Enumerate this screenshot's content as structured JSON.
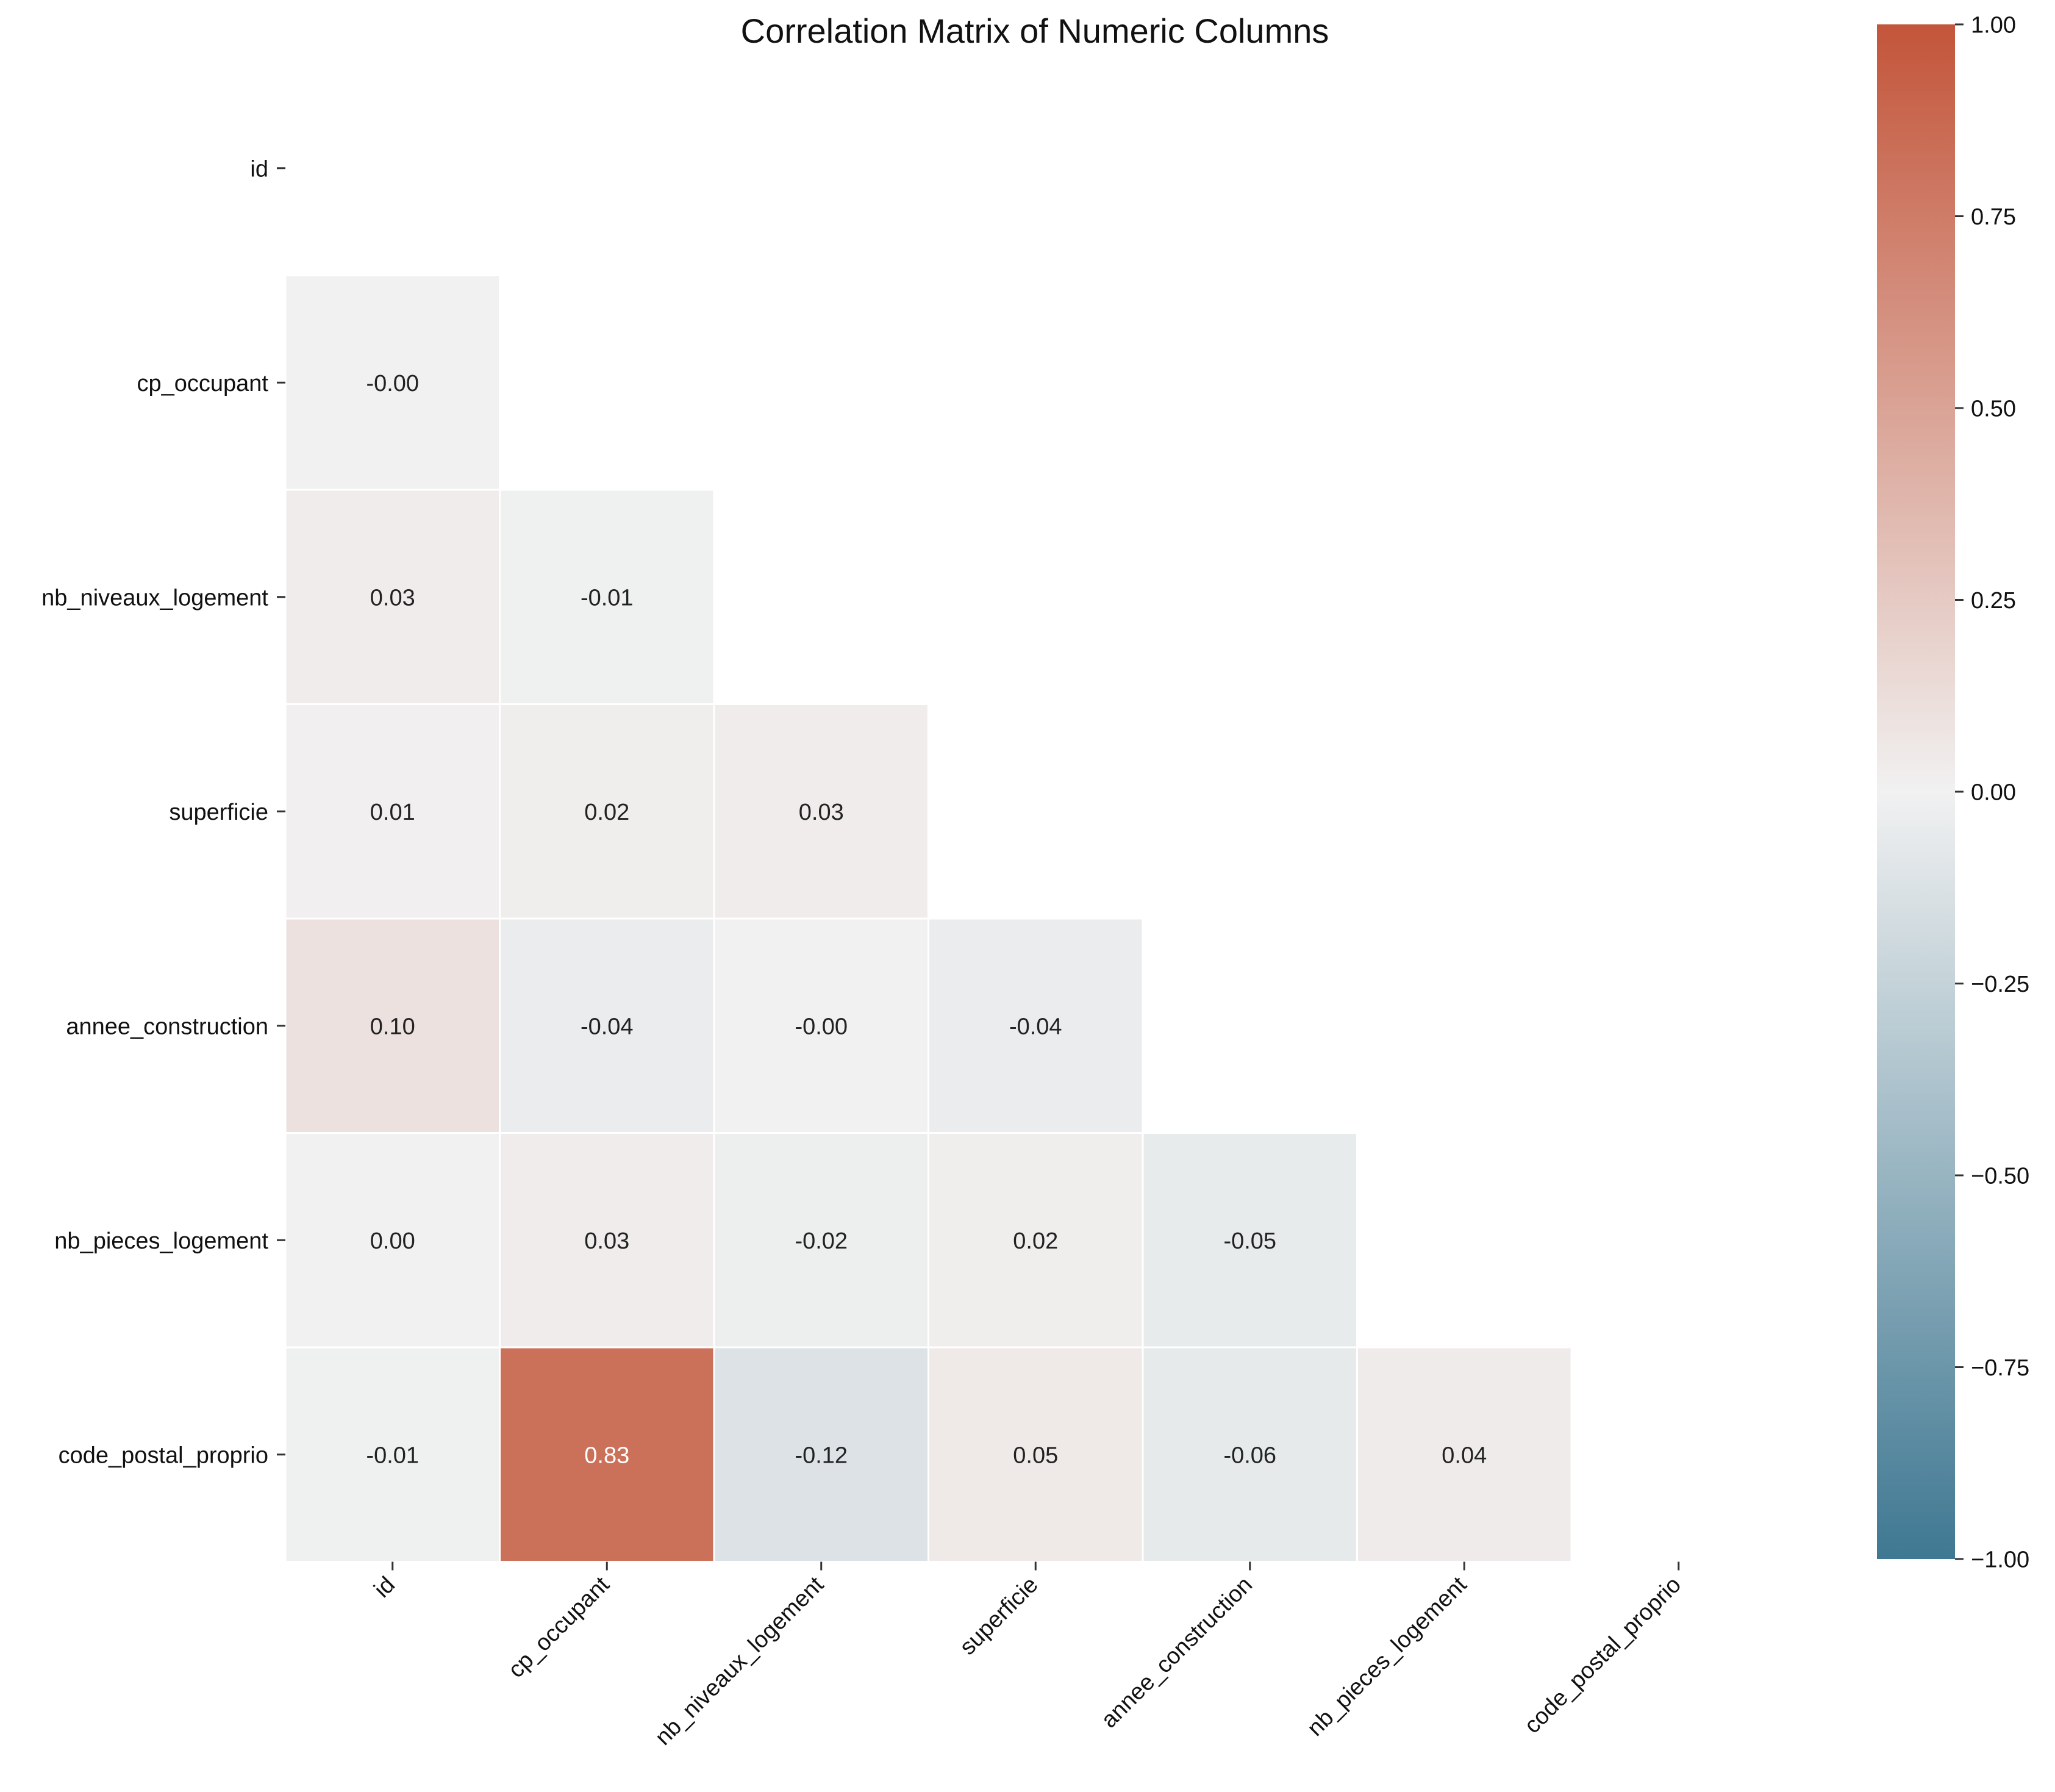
{
  "chart_data": {
    "type": "heatmap",
    "title": "Correlation Matrix of Numeric Columns",
    "xlabel": "",
    "ylabel": "",
    "variables": [
      "id",
      "cp_occupant",
      "nb_niveaux_logement",
      "superficie",
      "annee_construction",
      "nb_pieces_logement",
      "code_postal_proprio"
    ],
    "mask": "upper-triangle-including-diagonal",
    "cells": [
      {
        "row": 1,
        "col": 0,
        "value": -0.001,
        "label": "-0.00"
      },
      {
        "row": 2,
        "col": 0,
        "value": 0.03,
        "label": "0.03"
      },
      {
        "row": 2,
        "col": 1,
        "value": -0.01,
        "label": "-0.01"
      },
      {
        "row": 3,
        "col": 0,
        "value": 0.01,
        "label": "0.01"
      },
      {
        "row": 3,
        "col": 1,
        "value": 0.02,
        "label": "0.02"
      },
      {
        "row": 3,
        "col": 2,
        "value": 0.03,
        "label": "0.03"
      },
      {
        "row": 4,
        "col": 0,
        "value": 0.1,
        "label": "0.10"
      },
      {
        "row": 4,
        "col": 1,
        "value": -0.04,
        "label": "-0.04"
      },
      {
        "row": 4,
        "col": 2,
        "value": -0.001,
        "label": "-0.00"
      },
      {
        "row": 4,
        "col": 3,
        "value": -0.04,
        "label": "-0.04"
      },
      {
        "row": 5,
        "col": 0,
        "value": 0.001,
        "label": "0.00"
      },
      {
        "row": 5,
        "col": 1,
        "value": 0.03,
        "label": "0.03"
      },
      {
        "row": 5,
        "col": 2,
        "value": -0.02,
        "label": "-0.02"
      },
      {
        "row": 5,
        "col": 3,
        "value": 0.02,
        "label": "0.02"
      },
      {
        "row": 5,
        "col": 4,
        "value": -0.05,
        "label": "-0.05"
      },
      {
        "row": 6,
        "col": 0,
        "value": -0.01,
        "label": "-0.01"
      },
      {
        "row": 6,
        "col": 1,
        "value": 0.83,
        "label": "0.83"
      },
      {
        "row": 6,
        "col": 2,
        "value": -0.12,
        "label": "-0.12"
      },
      {
        "row": 6,
        "col": 3,
        "value": 0.05,
        "label": "0.05"
      },
      {
        "row": 6,
        "col": 4,
        "value": -0.06,
        "label": "-0.06"
      },
      {
        "row": 6,
        "col": 5,
        "value": 0.04,
        "label": "0.04"
      }
    ],
    "colorbar": {
      "range": [
        -1.0,
        1.0
      ],
      "ticks": [
        1.0,
        0.75,
        0.5,
        0.25,
        0.0,
        -0.25,
        -0.5,
        -0.75,
        -1.0
      ],
      "tick_labels": [
        "1.00",
        "0.75",
        "0.50",
        "0.25",
        "0.00",
        "−0.25",
        "−0.50",
        "−0.75",
        "−1.00"
      ],
      "colors": {
        "low": "#3f7892",
        "mid": "#f1f1f1",
        "high": "#c3553a"
      }
    },
    "grid": false,
    "cell_border_color": "#ffffff"
  }
}
